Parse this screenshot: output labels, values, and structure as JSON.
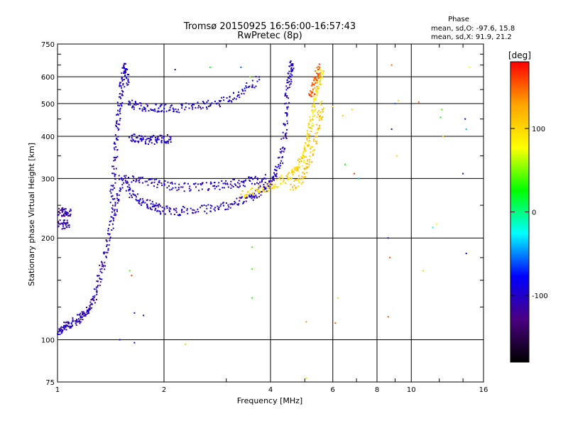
{
  "chart_data": {
    "type": "scatter",
    "title": "Tromsø 20150925 16:56:00-16:57:43",
    "subtitle": "RwPretec (8p)",
    "xlabel": "Frequency [MHz]",
    "ylabel": "Stationary phase Virtual Height [km]",
    "x_scale": "log",
    "y_scale": "log",
    "xlim": [
      1,
      16
    ],
    "ylim": [
      75,
      750
    ],
    "x_ticks": [
      1,
      2,
      4,
      6,
      8,
      10,
      16
    ],
    "y_ticks": [
      75,
      100,
      200,
      300,
      400,
      500,
      600,
      750
    ],
    "x_gridlines": [
      1,
      2,
      4,
      6,
      8,
      10,
      16
    ],
    "y_gridlines": [
      100,
      200,
      300,
      400,
      500,
      600
    ],
    "grid": true,
    "stats": {
      "heading": "Phase",
      "line_o": "mean, sd,O: -97.6, 15.8",
      "line_x": "mean, sd,X:  91.9, 21.2"
    },
    "colorbar": {
      "label": "[deg]",
      "range": [
        -180,
        180
      ],
      "ticks": [
        100,
        0,
        -100
      ],
      "colors": [
        "#000000",
        "#4b0082",
        "#0000ff",
        "#00ffff",
        "#00ff00",
        "#ffff00",
        "#ffa500",
        "#ff0000"
      ]
    },
    "traces": [
      {
        "x": [
          1.0,
          1.03,
          1.06,
          1.1,
          1.14,
          1.18,
          1.22,
          1.26,
          1.3,
          1.34,
          1.38,
          1.42,
          1.46,
          1.5
        ],
        "y": [
          105,
          108,
          110,
          112,
          115,
          118,
          122,
          130,
          145,
          165,
          190,
          220,
          250,
          280
        ],
        "phase": -105
      },
      {
        "x": [
          1.0,
          1.03,
          1.06,
          1.09
        ],
        "y": [
          235,
          240,
          238,
          236
        ],
        "phase": -110
      },
      {
        "x": [
          1.0,
          1.04,
          1.08
        ],
        "y": [
          218,
          220,
          219
        ],
        "phase": -110
      },
      {
        "x": [
          1.42,
          1.44,
          1.46,
          1.48,
          1.5,
          1.52,
          1.54,
          1.56,
          1.58
        ],
        "y": [
          250,
          300,
          360,
          430,
          500,
          560,
          620,
          640,
          560
        ],
        "phase": -100
      },
      {
        "x": [
          1.5,
          1.6,
          1.7,
          1.8,
          1.9,
          2.0,
          2.2,
          2.5,
          2.8,
          3.1,
          3.4,
          3.6,
          3.8,
          4.0,
          4.15,
          4.3,
          4.4,
          4.45,
          4.5,
          4.55,
          4.6
        ],
        "y": [
          300,
          275,
          260,
          252,
          246,
          242,
          240,
          242,
          246,
          252,
          260,
          268,
          278,
          290,
          310,
          350,
          420,
          500,
          580,
          630,
          650
        ],
        "phase": -100
      },
      {
        "x": [
          1.55,
          1.7,
          1.9,
          2.1,
          2.4,
          2.7,
          3.0,
          3.3,
          3.6,
          3.9
        ],
        "y": [
          300,
          295,
          290,
          285,
          282,
          284,
          288,
          292,
          296,
          300
        ],
        "phase": -100
      },
      {
        "x": [
          1.58,
          1.7,
          1.85,
          2.0,
          2.2,
          2.5,
          2.8,
          3.1,
          3.4,
          3.7
        ],
        "y": [
          500,
          490,
          485,
          483,
          485,
          490,
          500,
          520,
          550,
          590
        ],
        "phase": -95
      },
      {
        "x": [
          1.6,
          1.7,
          1.8,
          1.9,
          2.0,
          2.1
        ],
        "y": [
          395,
          392,
          390,
          390,
          392,
          395
        ],
        "phase": -100
      },
      {
        "x": [
          3.3,
          3.6,
          3.9,
          4.2,
          4.5,
          4.7,
          4.85,
          5.0,
          5.1,
          5.2,
          5.3,
          5.4,
          5.5,
          5.6
        ],
        "y": [
          268,
          275,
          282,
          292,
          305,
          318,
          335,
          360,
          390,
          430,
          480,
          540,
          590,
          620
        ],
        "phase": 100
      },
      {
        "x": [
          4.6,
          4.9,
          5.1,
          5.3,
          5.5,
          5.6
        ],
        "y": [
          280,
          300,
          330,
          380,
          450,
          500
        ],
        "phase": 110
      },
      {
        "x": [
          5.2,
          5.3,
          5.4,
          5.5
        ],
        "y": [
          520,
          560,
          600,
          640
        ],
        "phase": 150
      }
    ],
    "scattered": [
      {
        "x": 2.15,
        "y": 630,
        "phase": -100
      },
      {
        "x": 2.7,
        "y": 640,
        "phase": 20
      },
      {
        "x": 3.3,
        "y": 640,
        "phase": -60
      },
      {
        "x": 3.5,
        "y": 600,
        "phase": 50
      },
      {
        "x": 5.4,
        "y": 625,
        "phase": 80
      },
      {
        "x": 5.6,
        "y": 480,
        "phase": 110
      },
      {
        "x": 5.5,
        "y": 430,
        "phase": 120
      },
      {
        "x": 6.0,
        "y": 490,
        "phase": 105
      },
      {
        "x": 6.4,
        "y": 460,
        "phase": 110
      },
      {
        "x": 6.8,
        "y": 480,
        "phase": 100
      },
      {
        "x": 6.5,
        "y": 330,
        "phase": 20
      },
      {
        "x": 6.9,
        "y": 310,
        "phase": 160
      },
      {
        "x": 7.1,
        "y": 300,
        "phase": -40
      },
      {
        "x": 8.8,
        "y": 650,
        "phase": 150
      },
      {
        "x": 9.2,
        "y": 510,
        "phase": 100
      },
      {
        "x": 9.0,
        "y": 500,
        "phase": -60
      },
      {
        "x": 10.5,
        "y": 505,
        "phase": 150
      },
      {
        "x": 12.2,
        "y": 480,
        "phase": 40
      },
      {
        "x": 12.1,
        "y": 455,
        "phase": 30
      },
      {
        "x": 12.3,
        "y": 400,
        "phase": 100
      },
      {
        "x": 14.2,
        "y": 450,
        "phase": -80
      },
      {
        "x": 14.3,
        "y": 420,
        "phase": -40
      },
      {
        "x": 14.6,
        "y": 640,
        "phase": 80
      },
      {
        "x": 14.0,
        "y": 310,
        "phase": -120
      },
      {
        "x": 9.1,
        "y": 350,
        "phase": 100
      },
      {
        "x": 8.8,
        "y": 420,
        "phase": -100
      },
      {
        "x": 11.8,
        "y": 220,
        "phase": 80
      },
      {
        "x": 11.5,
        "y": 215,
        "phase": -20
      },
      {
        "x": 8.6,
        "y": 200,
        "phase": -100
      },
      {
        "x": 8.7,
        "y": 175,
        "phase": 160
      },
      {
        "x": 8.6,
        "y": 117,
        "phase": 150
      },
      {
        "x": 10.8,
        "y": 160,
        "phase": 100
      },
      {
        "x": 14.3,
        "y": 180,
        "phase": -100
      },
      {
        "x": 6.2,
        "y": 133,
        "phase": 100
      },
      {
        "x": 6.1,
        "y": 112,
        "phase": 150
      },
      {
        "x": 5.05,
        "y": 113,
        "phase": 130
      },
      {
        "x": 3.55,
        "y": 188,
        "phase": 40
      },
      {
        "x": 3.55,
        "y": 162,
        "phase": 40
      },
      {
        "x": 3.55,
        "y": 133,
        "phase": 30
      },
      {
        "x": 1.75,
        "y": 118,
        "phase": -100
      },
      {
        "x": 1.6,
        "y": 160,
        "phase": 40
      },
      {
        "x": 1.62,
        "y": 155,
        "phase": 160
      },
      {
        "x": 1.65,
        "y": 120,
        "phase": -100
      },
      {
        "x": 2.3,
        "y": 97,
        "phase": 110
      },
      {
        "x": 1.65,
        "y": 98,
        "phase": -100
      },
      {
        "x": 1.5,
        "y": 100,
        "phase": -100
      },
      {
        "x": 5.05,
        "y": 77,
        "phase": 100
      }
    ]
  }
}
